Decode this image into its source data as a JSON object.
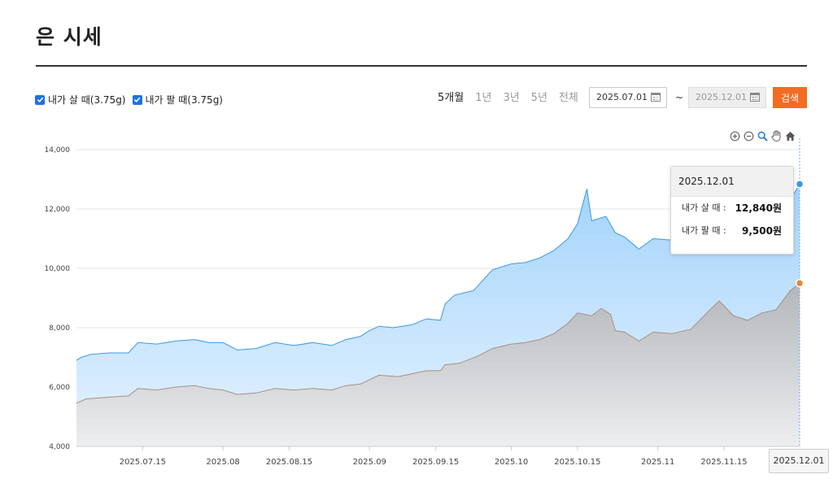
{
  "page": {
    "title": "은 시세"
  },
  "legend": [
    {
      "label": "내가 살 때(3.75g)",
      "checked": true
    },
    {
      "label": "내가 팔 때(3.75g)",
      "checked": true
    }
  ],
  "periods": [
    "5개월",
    "1년",
    "3년",
    "5년",
    "전체"
  ],
  "active_period": "5개월",
  "date_range": {
    "start": "2025.07.01",
    "separator": "~",
    "end": "2025.12.01"
  },
  "search_label": "검색",
  "toolbar_icons": [
    "zoom-in-icon",
    "zoom-out-icon",
    "magnifier-icon",
    "pan-hand-icon",
    "home-icon"
  ],
  "tooltip": {
    "date": "2025.12.01",
    "rows": [
      {
        "label": "내가 살 때 :",
        "value": "12,840원"
      },
      {
        "label": "내가 팔 때 :",
        "value": "9,500원"
      }
    ]
  },
  "crosshair_label": "2025.12.01",
  "colors": {
    "buy": "#3a98ea",
    "sell": "#e08a3c",
    "accent": "#f36c21"
  },
  "chart_data": {
    "type": "area",
    "ylim": [
      4000,
      14000
    ],
    "yticks": [
      "4,000",
      "6,000",
      "8,000",
      "10,000",
      "12,000",
      "14,000"
    ],
    "xticks": [
      "2025.07.15",
      "2025.08",
      "2025.08.15",
      "2025.09",
      "2025.09.15",
      "2025.10",
      "2025.10.15",
      "2025.11",
      "2025.11.15"
    ],
    "x_range": [
      "2025-07-01",
      "2025-12-01"
    ],
    "grid": true,
    "series": [
      {
        "name": "내가 살 때(3.75g)",
        "points": [
          [
            "2025-07-01",
            6900
          ],
          [
            "2025-07-02",
            7000
          ],
          [
            "2025-07-04",
            7100
          ],
          [
            "2025-07-08",
            7150
          ],
          [
            "2025-07-12",
            7150
          ],
          [
            "2025-07-14",
            7500
          ],
          [
            "2025-07-18",
            7450
          ],
          [
            "2025-07-22",
            7550
          ],
          [
            "2025-07-26",
            7600
          ],
          [
            "2025-07-29",
            7500
          ],
          [
            "2025-08-01",
            7500
          ],
          [
            "2025-08-04",
            7250
          ],
          [
            "2025-08-08",
            7300
          ],
          [
            "2025-08-12",
            7500
          ],
          [
            "2025-08-16",
            7400
          ],
          [
            "2025-08-20",
            7500
          ],
          [
            "2025-08-24",
            7400
          ],
          [
            "2025-08-27",
            7600
          ],
          [
            "2025-08-30",
            7700
          ],
          [
            "2025-09-01",
            7900
          ],
          [
            "2025-09-03",
            8050
          ],
          [
            "2025-09-06",
            8000
          ],
          [
            "2025-09-10",
            8100
          ],
          [
            "2025-09-13",
            8300
          ],
          [
            "2025-09-16",
            8250
          ],
          [
            "2025-09-17",
            8800
          ],
          [
            "2025-09-19",
            9100
          ],
          [
            "2025-09-23",
            9250
          ],
          [
            "2025-09-27",
            9950
          ],
          [
            "2025-10-01",
            10150
          ],
          [
            "2025-10-04",
            10200
          ],
          [
            "2025-10-07",
            10350
          ],
          [
            "2025-10-10",
            10600
          ],
          [
            "2025-10-13",
            11000
          ],
          [
            "2025-10-15",
            11500
          ],
          [
            "2025-10-17",
            12680
          ],
          [
            "2025-10-18",
            11600
          ],
          [
            "2025-10-21",
            11750
          ],
          [
            "2025-10-23",
            11200
          ],
          [
            "2025-10-25",
            11050
          ],
          [
            "2025-10-28",
            10650
          ],
          [
            "2025-10-31",
            11000
          ],
          [
            "2025-11-04",
            10950
          ],
          [
            "2025-11-08",
            10800
          ],
          [
            "2025-11-12",
            10900
          ],
          [
            "2025-11-16",
            10950
          ],
          [
            "2025-11-20",
            10950
          ],
          [
            "2025-11-24",
            11100
          ],
          [
            "2025-11-27",
            11500
          ],
          [
            "2025-11-29",
            12300
          ],
          [
            "2025-12-01",
            12840
          ]
        ]
      },
      {
        "name": "내가 팔 때(3.75g)",
        "points": [
          [
            "2025-07-01",
            5450
          ],
          [
            "2025-07-03",
            5600
          ],
          [
            "2025-07-07",
            5650
          ],
          [
            "2025-07-12",
            5700
          ],
          [
            "2025-07-14",
            5950
          ],
          [
            "2025-07-18",
            5900
          ],
          [
            "2025-07-22",
            6000
          ],
          [
            "2025-07-26",
            6050
          ],
          [
            "2025-07-29",
            5950
          ],
          [
            "2025-08-01",
            5900
          ],
          [
            "2025-08-04",
            5750
          ],
          [
            "2025-08-08",
            5800
          ],
          [
            "2025-08-12",
            5950
          ],
          [
            "2025-08-16",
            5900
          ],
          [
            "2025-08-20",
            5950
          ],
          [
            "2025-08-24",
            5900
          ],
          [
            "2025-08-27",
            6050
          ],
          [
            "2025-08-30",
            6100
          ],
          [
            "2025-09-01",
            6250
          ],
          [
            "2025-09-03",
            6400
          ],
          [
            "2025-09-07",
            6350
          ],
          [
            "2025-09-10",
            6450
          ],
          [
            "2025-09-13",
            6550
          ],
          [
            "2025-09-16",
            6550
          ],
          [
            "2025-09-17",
            6750
          ],
          [
            "2025-09-20",
            6800
          ],
          [
            "2025-09-24",
            7050
          ],
          [
            "2025-09-27",
            7300
          ],
          [
            "2025-10-01",
            7450
          ],
          [
            "2025-10-04",
            7500
          ],
          [
            "2025-10-07",
            7600
          ],
          [
            "2025-10-10",
            7800
          ],
          [
            "2025-10-13",
            8150
          ],
          [
            "2025-10-15",
            8500
          ],
          [
            "2025-10-18",
            8400
          ],
          [
            "2025-10-20",
            8650
          ],
          [
            "2025-10-22",
            8450
          ],
          [
            "2025-10-23",
            7900
          ],
          [
            "2025-10-25",
            7850
          ],
          [
            "2025-10-28",
            7550
          ],
          [
            "2025-10-31",
            7850
          ],
          [
            "2025-11-04",
            7800
          ],
          [
            "2025-11-08",
            7950
          ],
          [
            "2025-11-12",
            8600
          ],
          [
            "2025-11-14",
            8900
          ],
          [
            "2025-11-17",
            8400
          ],
          [
            "2025-11-20",
            8250
          ],
          [
            "2025-11-23",
            8500
          ],
          [
            "2025-11-26",
            8600
          ],
          [
            "2025-11-29",
            9250
          ],
          [
            "2025-12-01",
            9500
          ]
        ]
      }
    ]
  }
}
